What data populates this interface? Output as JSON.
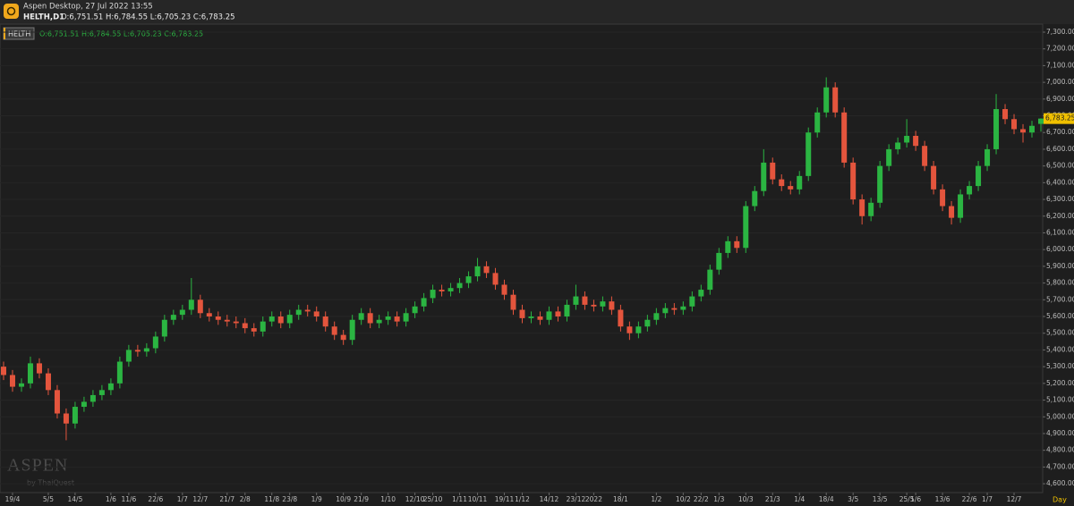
{
  "header": {
    "app": "Aspen Desktop, 27 Jul 2022 13:55",
    "symbol": "HELTH,D1",
    "ohlc": "O:6,751.51 H:6,784.55 L:6,705.23 C:6,783.25"
  },
  "watermark": {
    "brand": "ASPEN",
    "by": "by ThaiQuest"
  },
  "chart_data": {
    "type": "candlestick",
    "legend_label": "O:6,751.51 H:6,784.55 L:6,705.23 C:6,783.25",
    "last_price_label": "6,783.25",
    "x_unit": "Day",
    "series": [
      {
        "name": "HELTH",
        "up_color": "#2bb542",
        "down_color": "#e4553d",
        "open": [
          5300,
          5250,
          5180,
          5200,
          5320,
          5260,
          5160,
          5020,
          4960,
          5060,
          5090,
          5130,
          5160,
          5200,
          5330,
          5400,
          5390,
          5410,
          5480,
          5580,
          5610,
          5640,
          5700,
          5620,
          5600,
          5580,
          5570,
          5560,
          5530,
          5510,
          5570,
          5600,
          5560,
          5610,
          5640,
          5630,
          5600,
          5540,
          5490,
          5460,
          5580,
          5620,
          5560,
          5580,
          5600,
          5570,
          5620,
          5660,
          5710,
          5760,
          5750,
          5770,
          5800,
          5840,
          5900,
          5860,
          5790,
          5730,
          5640,
          5590,
          5600,
          5580,
          5630,
          5600,
          5670,
          5720,
          5670,
          5660,
          5690,
          5640,
          5540,
          5500,
          5540,
          5580,
          5620,
          5650,
          5640,
          5660,
          5720,
          5760,
          5880,
          5980,
          6050,
          6010,
          6260,
          6350,
          6520,
          6420,
          6380,
          6360,
          6440,
          6700,
          6820,
          6970,
          6820,
          6520,
          6300,
          6200,
          6280,
          6500,
          6600,
          6640,
          6680,
          6620,
          6500,
          6360,
          6260,
          6190,
          6330,
          6380,
          6500,
          6600,
          6840,
          6780,
          6720,
          6700,
          6751.51
        ],
        "high": [
          5330,
          5280,
          5230,
          5360,
          5350,
          5290,
          5190,
          5050,
          5090,
          5120,
          5160,
          5190,
          5230,
          5360,
          5430,
          5430,
          5440,
          5510,
          5610,
          5640,
          5670,
          5830,
          5730,
          5650,
          5630,
          5610,
          5600,
          5590,
          5560,
          5600,
          5630,
          5630,
          5640,
          5670,
          5670,
          5660,
          5630,
          5570,
          5520,
          5610,
          5650,
          5650,
          5610,
          5630,
          5630,
          5650,
          5690,
          5740,
          5790,
          5790,
          5800,
          5830,
          5870,
          5950,
          5930,
          5890,
          5820,
          5760,
          5670,
          5630,
          5630,
          5660,
          5660,
          5700,
          5790,
          5750,
          5700,
          5720,
          5720,
          5670,
          5570,
          5570,
          5610,
          5650,
          5680,
          5680,
          5690,
          5750,
          5790,
          5910,
          6010,
          6080,
          6080,
          6290,
          6380,
          6600,
          6550,
          6450,
          6410,
          6470,
          6730,
          6850,
          7030,
          7000,
          6850,
          6550,
          6330,
          6310,
          6530,
          6630,
          6670,
          6780,
          6710,
          6650,
          6530,
          6390,
          6290,
          6360,
          6410,
          6530,
          6630,
          6930,
          6870,
          6810,
          6750,
          6770,
          6784.55
        ],
        "low": [
          5220,
          5150,
          5150,
          5170,
          5230,
          5130,
          4990,
          4860,
          4930,
          5030,
          5060,
          5100,
          5130,
          5170,
          5300,
          5360,
          5360,
          5380,
          5450,
          5550,
          5580,
          5610,
          5590,
          5570,
          5550,
          5540,
          5530,
          5500,
          5480,
          5480,
          5540,
          5530,
          5530,
          5580,
          5600,
          5570,
          5510,
          5460,
          5430,
          5430,
          5550,
          5530,
          5530,
          5550,
          5540,
          5540,
          5590,
          5630,
          5680,
          5720,
          5720,
          5740,
          5770,
          5810,
          5830,
          5760,
          5700,
          5610,
          5560,
          5560,
          5550,
          5550,
          5570,
          5570,
          5640,
          5640,
          5630,
          5630,
          5610,
          5510,
          5460,
          5470,
          5510,
          5550,
          5590,
          5610,
          5610,
          5630,
          5690,
          5730,
          5850,
          5950,
          5980,
          5980,
          6230,
          6320,
          6390,
          6350,
          6330,
          6330,
          6410,
          6670,
          6790,
          6790,
          6490,
          6270,
          6150,
          6170,
          6250,
          6470,
          6570,
          6610,
          6590,
          6470,
          6330,
          6230,
          6150,
          6160,
          6300,
          6350,
          6470,
          6570,
          6750,
          6690,
          6640,
          6670,
          6705.23
        ],
        "close": [
          5250,
          5180,
          5200,
          5320,
          5260,
          5160,
          5020,
          4960,
          5060,
          5090,
          5130,
          5160,
          5200,
          5330,
          5400,
          5390,
          5410,
          5480,
          5580,
          5610,
          5640,
          5700,
          5620,
          5600,
          5580,
          5570,
          5560,
          5530,
          5510,
          5570,
          5600,
          5560,
          5610,
          5640,
          5630,
          5600,
          5540,
          5490,
          5460,
          5580,
          5620,
          5560,
          5580,
          5600,
          5570,
          5620,
          5660,
          5710,
          5760,
          5750,
          5770,
          5800,
          5840,
          5900,
          5860,
          5790,
          5730,
          5640,
          5590,
          5600,
          5580,
          5630,
          5600,
          5670,
          5720,
          5670,
          5660,
          5690,
          5640,
          5540,
          5500,
          5540,
          5580,
          5620,
          5650,
          5640,
          5660,
          5720,
          5760,
          5880,
          5980,
          6050,
          6010,
          6260,
          6350,
          6520,
          6420,
          6380,
          6360,
          6440,
          6700,
          6820,
          6970,
          6820,
          6520,
          6300,
          6200,
          6280,
          6500,
          6600,
          6640,
          6680,
          6620,
          6500,
          6360,
          6260,
          6190,
          6330,
          6380,
          6500,
          6600,
          6840,
          6780,
          6720,
          6700,
          6740,
          6783.25
        ]
      }
    ],
    "ylim": [
      4547,
      7348
    ],
    "yticks": [
      {
        "value": 4600,
        "label": "4,600.00"
      },
      {
        "value": 4700,
        "label": "4,700.00"
      },
      {
        "value": 4800,
        "label": "4,800.00"
      },
      {
        "value": 4900,
        "label": "4,900.00"
      },
      {
        "value": 5000,
        "label": "5,000.00"
      },
      {
        "value": 5100,
        "label": "5,100.00"
      },
      {
        "value": 5200,
        "label": "5,200.00"
      },
      {
        "value": 5300,
        "label": "5,300.00"
      },
      {
        "value": 5400,
        "label": "5,400.00"
      },
      {
        "value": 5500,
        "label": "5,500.00"
      },
      {
        "value": 5600,
        "label": "5,600.00"
      },
      {
        "value": 5700,
        "label": "5,700.00"
      },
      {
        "value": 5800,
        "label": "5,800.00"
      },
      {
        "value": 5900,
        "label": "5,900.00"
      },
      {
        "value": 6000,
        "label": "6,000.00"
      },
      {
        "value": 6100,
        "label": "6,100.00"
      },
      {
        "value": 6200,
        "label": "6,200.00"
      },
      {
        "value": 6300,
        "label": "6,300.00"
      },
      {
        "value": 6400,
        "label": "6,400.00"
      },
      {
        "value": 6500,
        "label": "6,500.00"
      },
      {
        "value": 6600,
        "label": "6,600.00"
      },
      {
        "value": 6700,
        "label": "6,700.00"
      },
      {
        "value": 6800,
        "label": "6,800.00"
      },
      {
        "value": 6900,
        "label": "6,900.00"
      },
      {
        "value": 7000,
        "label": "7,000.00"
      },
      {
        "value": 7100,
        "label": "7,100.00"
      },
      {
        "value": 7200,
        "label": "7,200.00"
      },
      {
        "value": 7300,
        "label": "7,300.00"
      }
    ],
    "xticks": [
      {
        "value": 1,
        "label": "19/4"
      },
      {
        "value": 5,
        "label": "5/5"
      },
      {
        "value": 8,
        "label": "14/5"
      },
      {
        "value": 12,
        "label": "1/6"
      },
      {
        "value": 14,
        "label": "11/6"
      },
      {
        "value": 17,
        "label": "22/6"
      },
      {
        "value": 20,
        "label": "1/7"
      },
      {
        "value": 22,
        "label": "12/7"
      },
      {
        "value": 25,
        "label": "21/7"
      },
      {
        "value": 27,
        "label": "2/8"
      },
      {
        "value": 30,
        "label": "11/8"
      },
      {
        "value": 32,
        "label": "23/8"
      },
      {
        "value": 35,
        "label": "1/9"
      },
      {
        "value": 38,
        "label": "10/9"
      },
      {
        "value": 40,
        "label": "21/9"
      },
      {
        "value": 43,
        "label": "1/10"
      },
      {
        "value": 46,
        "label": "12/10"
      },
      {
        "value": 48,
        "label": "25/10"
      },
      {
        "value": 51,
        "label": "1/11"
      },
      {
        "value": 53,
        "label": "10/11"
      },
      {
        "value": 56,
        "label": "19/11"
      },
      {
        "value": 58,
        "label": "1/12"
      },
      {
        "value": 61,
        "label": "14/12"
      },
      {
        "value": 64,
        "label": "23/12"
      },
      {
        "value": 66,
        "label": "2022"
      },
      {
        "value": 69,
        "label": "18/1"
      },
      {
        "value": 73,
        "label": "1/2"
      },
      {
        "value": 76,
        "label": "10/2"
      },
      {
        "value": 78,
        "label": "22/2"
      },
      {
        "value": 80,
        "label": "1/3"
      },
      {
        "value": 83,
        "label": "10/3"
      },
      {
        "value": 86,
        "label": "21/3"
      },
      {
        "value": 89,
        "label": "1/4"
      },
      {
        "value": 92,
        "label": "18/4"
      },
      {
        "value": 95,
        "label": "3/5"
      },
      {
        "value": 98,
        "label": "13/5"
      },
      {
        "value": 101,
        "label": "25/5"
      },
      {
        "value": 102,
        "label": "1/6"
      },
      {
        "value": 105,
        "label": "13/6"
      },
      {
        "value": 108,
        "label": "22/6"
      },
      {
        "value": 110,
        "label": "1/7"
      },
      {
        "value": 113,
        "label": "12/7"
      }
    ],
    "grid": true
  }
}
